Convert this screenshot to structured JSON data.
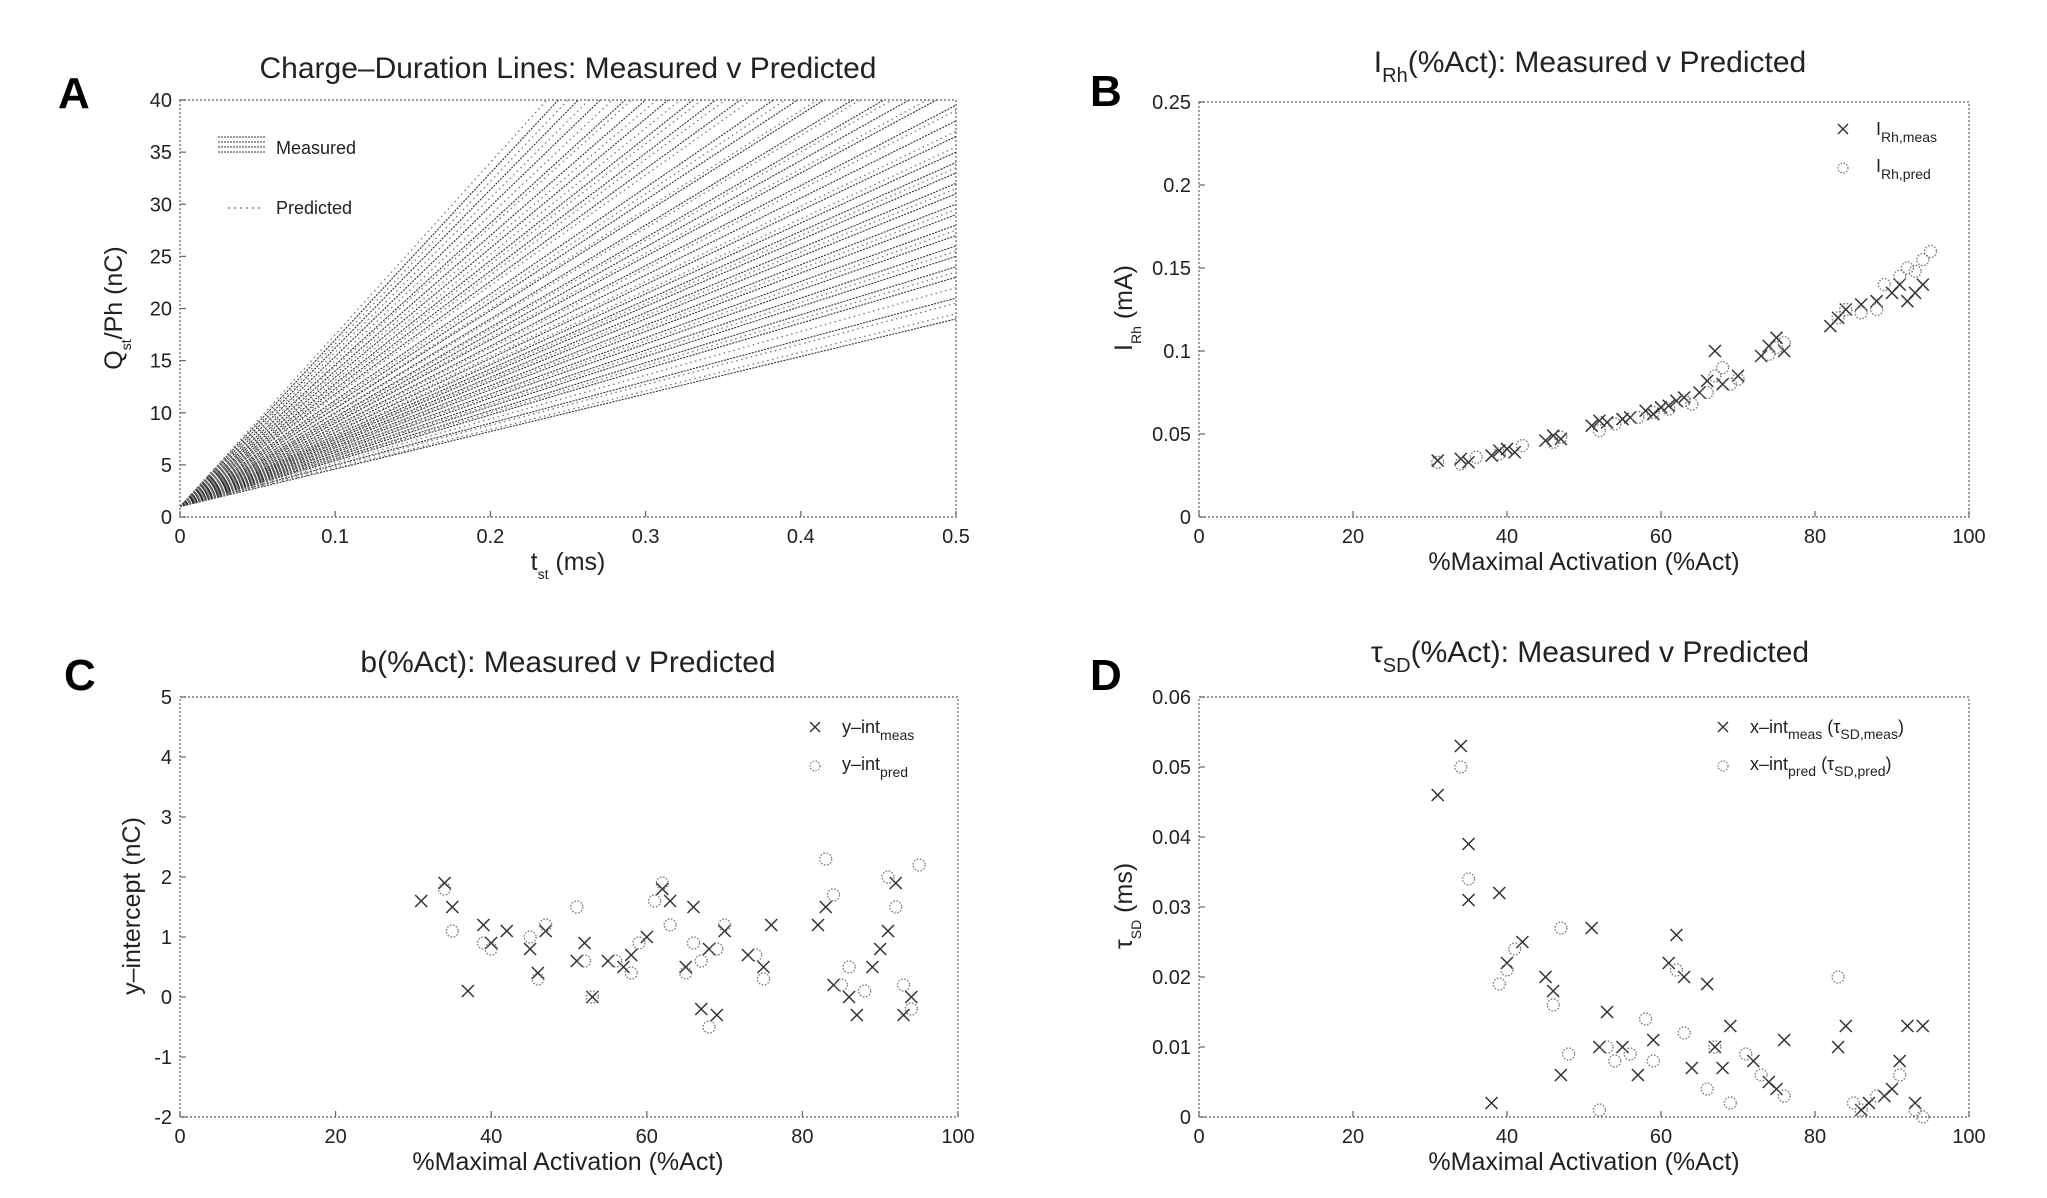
{
  "panels": {
    "A": {
      "letter": "A",
      "title": "Charge–Duration Lines: Measured v Predicted",
      "xlabel_main": "t",
      "xlabel_sub": "st",
      "xlabel_tail": " (ms)",
      "ylabel_main": "Q",
      "ylabel_sub": "st",
      "ylabel_tail": "/Ph (nC)",
      "legend": [
        "Measured",
        "Predicted"
      ]
    },
    "B": {
      "letter": "B",
      "title_main": "I",
      "title_sub": "Rh",
      "title_tail": "(%Act): Measured v Predicted",
      "xlabel": "%Maximal Activation (%Act)",
      "ylabel_main": "I",
      "ylabel_sub": "Rh",
      "ylabel_tail": " (mA)",
      "legend": [
        {
          "main": "I",
          "sub": "Rh,meas"
        },
        {
          "main": "I",
          "sub": "Rh,pred"
        }
      ]
    },
    "C": {
      "letter": "C",
      "title": "b(%Act): Measured v Predicted",
      "xlabel": "%Maximal Activation (%Act)",
      "ylabel": "y–intercept (nC)",
      "legend": [
        {
          "main": "y–int",
          "sub": "meas"
        },
        {
          "main": "y–int",
          "sub": "pred"
        }
      ]
    },
    "D": {
      "letter": "D",
      "title_main": "τ",
      "title_sub": "SD",
      "title_tail": "(%Act): Measured v Predicted",
      "xlabel": "%Maximal Activation (%Act)",
      "ylabel_main": "τ",
      "ylabel_sub": "SD",
      "ylabel_tail": " (ms)",
      "legend": [
        {
          "main": "x–int",
          "sub": "meas",
          "tail1": " (τ",
          "sub2": "SD,meas",
          "tail2": ")"
        },
        {
          "main": "x–int",
          "sub": "pred",
          "tail1": " (τ",
          "sub2": "SD,pred",
          "tail2": ")"
        }
      ]
    }
  },
  "chart_data": [
    {
      "panel": "A",
      "type": "line",
      "title": "Charge–Duration Lines: Measured v Predicted",
      "xlim": [
        0,
        0.5
      ],
      "ylim": [
        0,
        40
      ],
      "xticks": [
        "0",
        "0.1",
        "0.2",
        "0.3",
        "0.4",
        "0.5"
      ],
      "yticks": [
        "0",
        "5",
        "10",
        "15",
        "20",
        "25",
        "30",
        "35",
        "40"
      ],
      "lines_b_intercept": 1,
      "series": [
        {
          "name": "Measured",
          "slopes": [
            36,
            40,
            44,
            46,
            48,
            50,
            52,
            54,
            56,
            58,
            60,
            62,
            64,
            66,
            68,
            71,
            74,
            77,
            80,
            83,
            86,
            90,
            94,
            98,
            102,
            108,
            113,
            118,
            124,
            130,
            136,
            144,
            152,
            160
          ]
        },
        {
          "name": "Predicted",
          "slopes": [
            37,
            39,
            42,
            45,
            49,
            53,
            57,
            61,
            65,
            69,
            72,
            76,
            81,
            85,
            89,
            95,
            100,
            106,
            111,
            116,
            121,
            127,
            134,
            140,
            148,
            156,
            165
          ]
        }
      ]
    },
    {
      "panel": "B",
      "type": "scatter",
      "xlim": [
        0,
        100
      ],
      "ylim": [
        0,
        0.25
      ],
      "xticks": [
        "0",
        "20",
        "40",
        "60",
        "80",
        "100"
      ],
      "yticks": [
        "0",
        "0.05",
        "0.1",
        "0.15",
        "0.2",
        "0.25"
      ],
      "series": [
        {
          "name": "I_Rh,meas",
          "marker": "x",
          "x": [
            31,
            34,
            35,
            38,
            39,
            40,
            41,
            45,
            46,
            47,
            51,
            52,
            53,
            55,
            56,
            58,
            59,
            60,
            61,
            62,
            63,
            65,
            66,
            67,
            68,
            70,
            73,
            74,
            75,
            76,
            82,
            83,
            84,
            86,
            88,
            90,
            91,
            92,
            93,
            94
          ],
          "y": [
            0.034,
            0.035,
            0.033,
            0.037,
            0.04,
            0.041,
            0.039,
            0.046,
            0.049,
            0.047,
            0.055,
            0.058,
            0.057,
            0.059,
            0.06,
            0.064,
            0.062,
            0.066,
            0.067,
            0.07,
            0.072,
            0.075,
            0.082,
            0.1,
            0.08,
            0.085,
            0.097,
            0.103,
            0.108,
            0.1,
            0.115,
            0.12,
            0.125,
            0.128,
            0.13,
            0.135,
            0.14,
            0.13,
            0.135,
            0.14
          ]
        },
        {
          "name": "I_Rh,pred",
          "marker": "o",
          "x": [
            31,
            34,
            36,
            39,
            42,
            46,
            47,
            52,
            54,
            57,
            59,
            61,
            63,
            64,
            66,
            67,
            68,
            69,
            70,
            74,
            75,
            76,
            83,
            84,
            86,
            88,
            89,
            91,
            92,
            93,
            94,
            95
          ],
          "y": [
            0.033,
            0.032,
            0.036,
            0.038,
            0.043,
            0.045,
            0.048,
            0.052,
            0.056,
            0.06,
            0.063,
            0.065,
            0.07,
            0.068,
            0.075,
            0.085,
            0.09,
            0.08,
            0.083,
            0.098,
            0.102,
            0.105,
            0.12,
            0.125,
            0.123,
            0.125,
            0.14,
            0.145,
            0.15,
            0.148,
            0.155,
            0.16
          ]
        }
      ]
    },
    {
      "panel": "C",
      "type": "scatter",
      "xlim": [
        0,
        100
      ],
      "ylim": [
        -2,
        5
      ],
      "xticks": [
        "0",
        "20",
        "40",
        "60",
        "80",
        "100"
      ],
      "yticks": [
        "-2",
        "-1",
        "0",
        "1",
        "2",
        "3",
        "4",
        "5"
      ],
      "series": [
        {
          "name": "y-int_meas",
          "marker": "x",
          "x": [
            31,
            34,
            35,
            37,
            39,
            40,
            42,
            45,
            46,
            47,
            51,
            52,
            53,
            55,
            57,
            58,
            60,
            62,
            63,
            65,
            66,
            67,
            68,
            69,
            70,
            73,
            75,
            76,
            82,
            83,
            84,
            86,
            87,
            89,
            90,
            91,
            92,
            93,
            94
          ],
          "y": [
            1.6,
            1.9,
            1.5,
            0.1,
            1.2,
            0.9,
            1.1,
            0.8,
            0.4,
            1.1,
            0.6,
            0.9,
            0.0,
            0.6,
            0.5,
            0.7,
            1.0,
            1.8,
            1.6,
            0.5,
            1.5,
            -0.2,
            0.8,
            -0.3,
            1.1,
            0.7,
            0.5,
            1.2,
            1.2,
            1.5,
            0.2,
            0.0,
            -0.3,
            0.5,
            0.8,
            1.1,
            1.9,
            -0.3,
            0.0
          ]
        },
        {
          "name": "y-int_pred",
          "marker": "o",
          "x": [
            34,
            35,
            39,
            40,
            45,
            46,
            47,
            51,
            52,
            53,
            56,
            58,
            59,
            61,
            62,
            63,
            65,
            66,
            67,
            68,
            69,
            70,
            74,
            75,
            83,
            84,
            85,
            86,
            88,
            91,
            92,
            93,
            94,
            95
          ],
          "y": [
            1.8,
            1.1,
            0.9,
            0.8,
            1.0,
            0.3,
            1.2,
            1.5,
            0.6,
            0.0,
            0.6,
            0.4,
            0.9,
            1.6,
            1.9,
            1.2,
            0.4,
            0.9,
            0.6,
            -0.5,
            0.8,
            1.2,
            0.7,
            0.3,
            2.3,
            1.7,
            0.2,
            0.5,
            0.1,
            2.0,
            1.5,
            0.2,
            -0.2,
            2.2
          ]
        }
      ]
    },
    {
      "panel": "D",
      "type": "scatter",
      "xlim": [
        0,
        100
      ],
      "ylim": [
        0,
        0.06
      ],
      "xticks": [
        "0",
        "20",
        "40",
        "60",
        "80",
        "100"
      ],
      "yticks": [
        "0",
        "0.01",
        "0.02",
        "0.03",
        "0.04",
        "0.05",
        "0.06"
      ],
      "series": [
        {
          "name": "x-int_meas (tau_SD,meas)",
          "marker": "x",
          "x": [
            31,
            34,
            35,
            35,
            38,
            39,
            40,
            42,
            45,
            46,
            47,
            51,
            52,
            53,
            55,
            57,
            59,
            61,
            62,
            63,
            64,
            66,
            67,
            68,
            69,
            72,
            74,
            75,
            76,
            83,
            84,
            86,
            87,
            89,
            90,
            91,
            92,
            93,
            94
          ],
          "y": [
            0.046,
            0.053,
            0.039,
            0.031,
            0.002,
            0.032,
            0.022,
            0.025,
            0.02,
            0.018,
            0.006,
            0.027,
            0.01,
            0.015,
            0.01,
            0.006,
            0.011,
            0.022,
            0.026,
            0.02,
            0.007,
            0.019,
            0.01,
            0.007,
            0.013,
            0.008,
            0.005,
            0.004,
            0.011,
            0.01,
            0.013,
            0.001,
            0.002,
            0.003,
            0.004,
            0.008,
            0.013,
            0.002,
            0.013
          ]
        },
        {
          "name": "x-int_pred (tau_SD,pred)",
          "marker": "o",
          "x": [
            34,
            35,
            39,
            40,
            41,
            46,
            47,
            48,
            52,
            53,
            54,
            56,
            58,
            59,
            62,
            63,
            66,
            67,
            69,
            71,
            73,
            76,
            83,
            85,
            86,
            88,
            91,
            93,
            94
          ],
          "y": [
            0.05,
            0.034,
            0.019,
            0.021,
            0.024,
            0.016,
            0.027,
            0.009,
            0.001,
            0.01,
            0.008,
            0.009,
            0.014,
            0.008,
            0.021,
            0.012,
            0.004,
            0.01,
            0.002,
            0.009,
            0.006,
            0.003,
            0.02,
            0.002,
            0.001,
            0.003,
            0.006,
            0.001,
            0.0
          ]
        }
      ]
    }
  ]
}
